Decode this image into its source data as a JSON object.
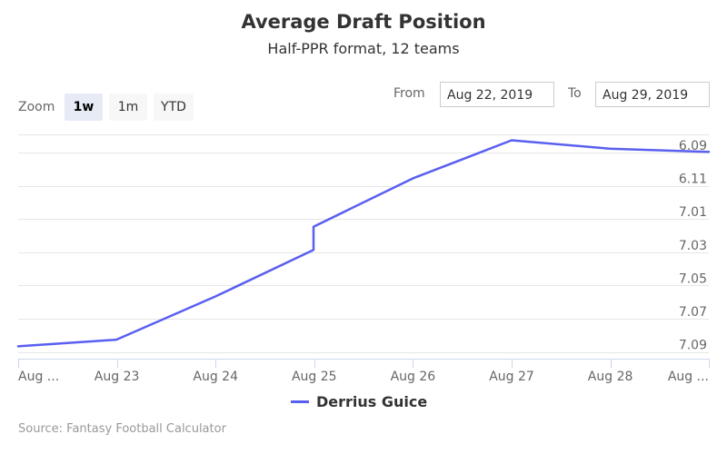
{
  "header": {
    "title": "Average Draft Position",
    "subtitle": "Half-PPR format, 12 teams"
  },
  "range_selector": {
    "zoom_label": "Zoom",
    "buttons": [
      {
        "label": "1w",
        "active": true
      },
      {
        "label": "1m",
        "active": false
      },
      {
        "label": "YTD",
        "active": false
      }
    ],
    "from_label": "From",
    "from_value": "Aug 22, 2019",
    "to_label": "To",
    "to_value": "Aug 29, 2019"
  },
  "legend": {
    "series_name": "Derrius Guice"
  },
  "credits": "Source: Fantasy Football Calculator",
  "colors": {
    "series": "#5a5ff0",
    "grid": "#e6e6e6",
    "axis": "#ccd6eb",
    "label": "#666666"
  },
  "chart_data": {
    "type": "line",
    "title": "Average Draft Position",
    "subtitle": "Half-PPR format, 12 teams",
    "xlabel": "",
    "ylabel": "",
    "y_axis_position": "right",
    "y_reversed": true,
    "y_ticks": [
      "6.09",
      "6.11",
      "7.01",
      "7.03",
      "7.05",
      "7.07",
      "7.09"
    ],
    "x_ticks": [
      "Aug ...",
      "Aug 23",
      "Aug 24",
      "Aug 25",
      "Aug 26",
      "Aug 27",
      "Aug 28",
      "Aug ..."
    ],
    "grid": true,
    "legend_position": "bottom-center",
    "series": [
      {
        "name": "Derrius Guice",
        "points": [
          {
            "x": "Aug 22, 2019",
            "y_index": 6.05
          },
          {
            "x": "Aug 23, 2019",
            "y_index": 5.85
          },
          {
            "x": "Aug 24, 2019",
            "y_index": 4.55
          },
          {
            "x": "Aug 25, 2019 early",
            "y_index": 3.15
          },
          {
            "x": "Aug 25, 2019 late",
            "y_index": 2.45
          },
          {
            "x": "Aug 26, 2019",
            "y_index": 1.0
          },
          {
            "x": "Aug 27, 2019",
            "y_index": -0.15
          },
          {
            "x": "Aug 28, 2019",
            "y_index": 0.1
          },
          {
            "x": "Aug 29, 2019",
            "y_index": 0.2
          }
        ]
      }
    ]
  }
}
